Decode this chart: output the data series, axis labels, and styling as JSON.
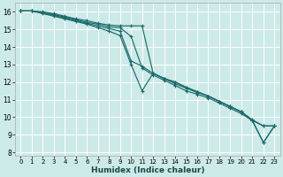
{
  "background_color": "#cceae8",
  "grid_color": "#ffffff",
  "line_color": "#1a6b6b",
  "xlabel": "Humidex (Indice chaleur)",
  "xlim": [
    -0.5,
    23.5
  ],
  "ylim": [
    7.8,
    16.5
  ],
  "yticks": [
    8,
    9,
    10,
    11,
    12,
    13,
    14,
    15,
    16
  ],
  "xticks": [
    0,
    1,
    2,
    3,
    4,
    5,
    6,
    7,
    8,
    9,
    10,
    11,
    12,
    13,
    14,
    15,
    16,
    17,
    18,
    19,
    20,
    21,
    22,
    23
  ],
  "series": [
    {
      "x": [
        0,
        1,
        2,
        3,
        4,
        5,
        6,
        7,
        8,
        9,
        10,
        11,
        12,
        13,
        14,
        15,
        16,
        17,
        18,
        19,
        20,
        21,
        22,
        23
      ],
      "y": [
        16.05,
        16.05,
        16.0,
        15.9,
        15.75,
        15.6,
        15.5,
        15.35,
        15.25,
        15.2,
        15.2,
        15.2,
        12.5,
        12.2,
        11.9,
        11.65,
        11.4,
        11.2,
        10.9,
        10.6,
        10.3,
        9.85,
        9.5,
        9.5
      ]
    },
    {
      "x": [
        0,
        1,
        2,
        3,
        4,
        5,
        6,
        7,
        8,
        9,
        10,
        11,
        12,
        13,
        14,
        15,
        16,
        17,
        18,
        19,
        20,
        21,
        22,
        23
      ],
      "y": [
        16.05,
        16.05,
        15.95,
        15.85,
        15.7,
        15.55,
        15.4,
        15.3,
        15.15,
        15.1,
        14.6,
        12.8,
        12.4,
        12.1,
        11.8,
        11.5,
        11.3,
        11.1,
        10.8,
        10.5,
        10.2,
        9.8,
        9.5,
        9.5
      ]
    },
    {
      "x": [
        0,
        1,
        2,
        3,
        4,
        5,
        6,
        7,
        8,
        9,
        10,
        11,
        12,
        13,
        14,
        15,
        16,
        17,
        18,
        19,
        20,
        21,
        22,
        23
      ],
      "y": [
        16.05,
        16.05,
        15.95,
        15.8,
        15.65,
        15.5,
        15.35,
        15.2,
        15.05,
        14.9,
        13.2,
        12.9,
        12.5,
        12.2,
        12.0,
        11.7,
        11.45,
        11.2,
        10.9,
        10.6,
        10.3,
        9.8,
        8.55,
        9.5
      ]
    },
    {
      "x": [
        0,
        1,
        2,
        3,
        4,
        5,
        6,
        7,
        8,
        9,
        10,
        11,
        12,
        13,
        14,
        15,
        16,
        17,
        18,
        19,
        20,
        21,
        22,
        23
      ],
      "y": [
        16.05,
        16.05,
        15.9,
        15.75,
        15.6,
        15.45,
        15.3,
        15.1,
        14.9,
        14.65,
        13.0,
        11.5,
        12.5,
        12.2,
        12.0,
        11.7,
        11.45,
        11.2,
        10.9,
        10.6,
        10.3,
        9.8,
        8.55,
        9.5
      ]
    }
  ]
}
